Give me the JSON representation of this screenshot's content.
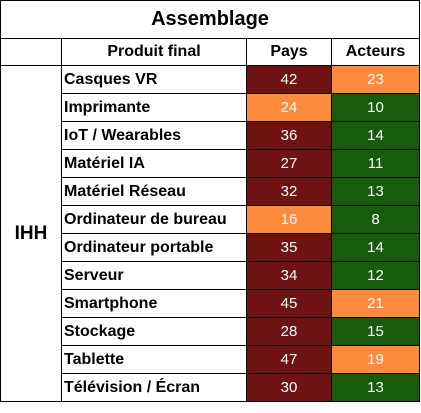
{
  "chart_data": {
    "type": "table",
    "title": "Assemblage",
    "row_group_label": "IHH",
    "columns": [
      "Produit final",
      "Pays",
      "Acteurs"
    ],
    "rows": [
      {
        "product": "Casques VR",
        "pays": 42,
        "acteurs": 23,
        "pays_level": "high",
        "acteurs_level": "medium"
      },
      {
        "product": "Imprimante",
        "pays": 24,
        "acteurs": 10,
        "pays_level": "medium",
        "acteurs_level": "low"
      },
      {
        "product": "IoT / Wearables",
        "pays": 36,
        "acteurs": 14,
        "pays_level": "high",
        "acteurs_level": "low"
      },
      {
        "product": "Matériel IA",
        "pays": 27,
        "acteurs": 11,
        "pays_level": "high",
        "acteurs_level": "low"
      },
      {
        "product": "Matériel Réseau",
        "pays": 32,
        "acteurs": 13,
        "pays_level": "high",
        "acteurs_level": "low"
      },
      {
        "product": "Ordinateur de bureau",
        "pays": 16,
        "acteurs": 8,
        "pays_level": "medium",
        "acteurs_level": "low"
      },
      {
        "product": "Ordinateur portable",
        "pays": 35,
        "acteurs": 14,
        "pays_level": "high",
        "acteurs_level": "low"
      },
      {
        "product": "Serveur",
        "pays": 34,
        "acteurs": 12,
        "pays_level": "high",
        "acteurs_level": "low"
      },
      {
        "product": "Smartphone",
        "pays": 45,
        "acteurs": 21,
        "pays_level": "high",
        "acteurs_level": "medium"
      },
      {
        "product": "Stockage",
        "pays": 28,
        "acteurs": 15,
        "pays_level": "high",
        "acteurs_level": "low"
      },
      {
        "product": "Tablette",
        "pays": 47,
        "acteurs": 19,
        "pays_level": "high",
        "acteurs_level": "medium"
      },
      {
        "product": "Télévision / Écran",
        "pays": 30,
        "acteurs": 13,
        "pays_level": "high",
        "acteurs_level": "low"
      }
    ],
    "level_colors": {
      "high": {
        "bg": "#6e1212",
        "fg": "#ffffff"
      },
      "medium": {
        "bg": "#ff8a3c",
        "fg": "#ffffff"
      },
      "low": {
        "bg": "#175b0c",
        "fg": "#ffffff"
      }
    },
    "grid": true
  }
}
